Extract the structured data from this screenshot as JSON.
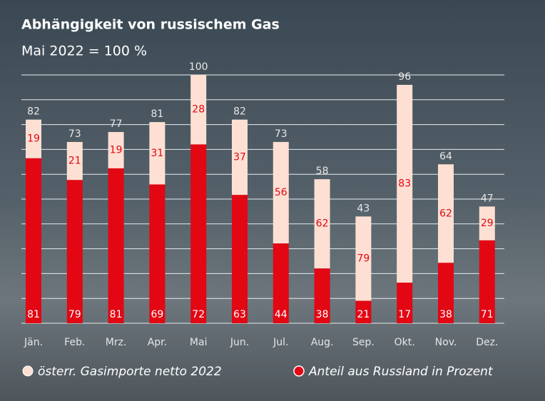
{
  "chart_data": {
    "type": "bar",
    "title": "Abhängigkeit von russischem Gas",
    "subtitle": "Mai 2022 = 100 %",
    "categories": [
      "Jän.",
      "Feb.",
      "Mrz.",
      "Apr.",
      "Mai",
      "Jun.",
      "Jul.",
      "Aug.",
      "Sep.",
      "Okt.",
      "Nov.",
      "Dez."
    ],
    "series": [
      {
        "name": "österr. Gasimporte netto 2022",
        "color": "#fde0d3",
        "values": [
          82,
          73,
          77,
          81,
          100,
          82,
          73,
          58,
          43,
          96,
          64,
          47
        ],
        "other_share": [
          19,
          21,
          19,
          31,
          28,
          37,
          56,
          62,
          79,
          83,
          62,
          29
        ]
      },
      {
        "name": "Anteil aus Russland in Prozent",
        "color": "#e30613",
        "values": [
          81,
          79,
          81,
          69,
          72,
          63,
          44,
          38,
          21,
          17,
          38,
          71
        ]
      }
    ],
    "ylim": [
      0,
      100
    ],
    "yticks": [
      0,
      10,
      20,
      30,
      40,
      50,
      60,
      70,
      80,
      90,
      100
    ],
    "grid": true
  }
}
